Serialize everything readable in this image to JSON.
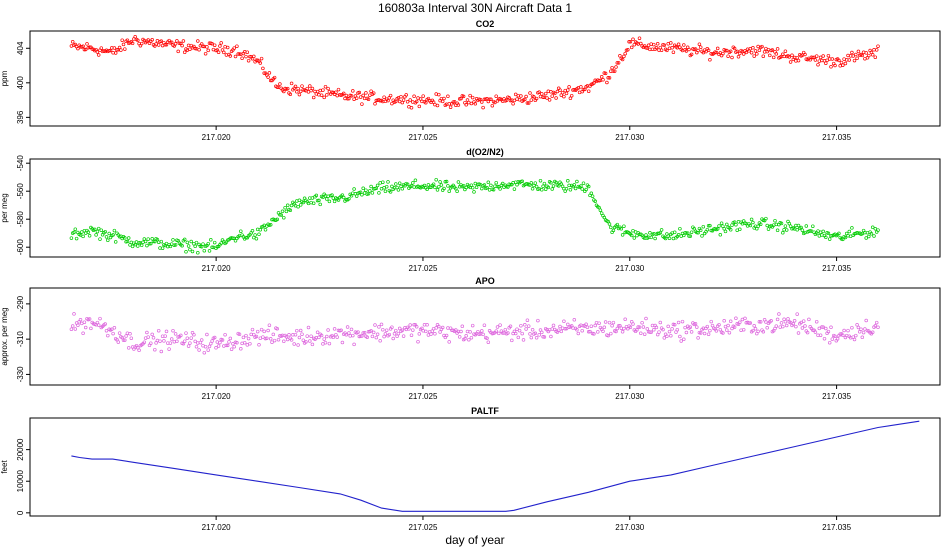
{
  "title": "160803a   Interval 30N Aircraft Data 1",
  "xlabel": "day of year",
  "xlim": [
    217.0155,
    217.0375
  ],
  "x_ticks": [
    217.02,
    217.025,
    217.03,
    217.035
  ],
  "x_tick_labels": [
    "217.020",
    "217.025",
    "217.030",
    "217.035"
  ],
  "chart_data": [
    {
      "type": "scatter",
      "title": "CO2",
      "ylabel": "ppm",
      "color": "#ff0000",
      "ylim": [
        395,
        406
      ],
      "y_ticks": [
        396,
        400,
        404
      ],
      "y_tick_labels": [
        "396",
        "400",
        "404"
      ],
      "x": [
        217.0165,
        217.017,
        217.0175,
        217.018,
        217.019,
        217.0205,
        217.021,
        217.0215,
        217.022,
        217.023,
        217.024,
        217.025,
        217.026,
        217.027,
        217.028,
        217.029,
        217.0295,
        217.0298,
        217.03,
        217.031,
        217.032,
        217.033,
        217.034,
        217.035,
        217.036
      ],
      "y": [
        404.2,
        404.0,
        403.5,
        405.0,
        404.3,
        403.8,
        402.5,
        399.5,
        399.2,
        398.5,
        398.2,
        398.0,
        397.8,
        398.0,
        398.5,
        399.5,
        401.0,
        403.0,
        404.5,
        404.0,
        403.5,
        403.8,
        403.0,
        402.5,
        403.5
      ],
      "noise": 0.6
    },
    {
      "type": "scatter",
      "title": "d(O2/N2)",
      "ylabel": "per meg",
      "color": "#00cc00",
      "ylim": [
        -607,
        -537
      ],
      "y_ticks": [
        -600,
        -580,
        -560,
        -540
      ],
      "y_tick_labels": [
        "-600",
        "-580",
        "-560",
        "-540"
      ],
      "x": [
        217.0165,
        217.017,
        217.0175,
        217.018,
        217.019,
        217.02,
        217.0205,
        217.021,
        217.0215,
        217.022,
        217.023,
        217.024,
        217.025,
        217.026,
        217.027,
        217.028,
        217.029,
        217.0295,
        217.03,
        217.031,
        217.032,
        217.033,
        217.034,
        217.035,
        217.036
      ],
      "y": [
        -591,
        -588,
        -592,
        -596,
        -598,
        -600,
        -592,
        -591,
        -578,
        -568,
        -565,
        -558,
        -556,
        -558,
        -555,
        -556,
        -557,
        -585,
        -590,
        -592,
        -587,
        -583,
        -586,
        -593,
        -588
      ],
      "noise": 3.5
    },
    {
      "type": "scatter",
      "title": "APO",
      "ylabel": "approx. per meg",
      "color": "#dd66dd",
      "ylim": [
        -336,
        -281
      ],
      "y_ticks": [
        -330,
        -310,
        -290
      ],
      "y_tick_labels": [
        "-330",
        "-310",
        "-290"
      ],
      "x": [
        217.0165,
        217.017,
        217.0175,
        217.018,
        217.019,
        217.02,
        217.021,
        217.022,
        217.023,
        217.024,
        217.025,
        217.026,
        217.027,
        217.028,
        217.029,
        217.03,
        217.031,
        217.032,
        217.033,
        217.034,
        217.035,
        217.036
      ],
      "y": [
        -302,
        -300,
        -305,
        -312,
        -310,
        -313,
        -308,
        -309,
        -307,
        -306,
        -305,
        -307,
        -306,
        -305,
        -304,
        -303,
        -305,
        -304,
        -302,
        -301,
        -308,
        -302
      ],
      "noise": 4.5
    },
    {
      "type": "line",
      "title": "PALTF",
      "ylabel": "feet",
      "color": "#2222cc",
      "ylim": [
        -1000,
        30000
      ],
      "y_ticks": [
        0,
        10000,
        20000
      ],
      "y_tick_labels": [
        "0",
        "10000",
        "20000"
      ],
      "x": [
        217.0165,
        217.0167,
        217.017,
        217.0175,
        217.018,
        217.019,
        217.02,
        217.021,
        217.022,
        217.023,
        217.0235,
        217.024,
        217.0245,
        217.025,
        217.026,
        217.027,
        217.0272,
        217.028,
        217.029,
        217.03,
        217.0305,
        217.031,
        217.032,
        217.033,
        217.034,
        217.035,
        217.036,
        217.037
      ],
      "y": [
        18000,
        17500,
        17000,
        17000,
        16000,
        14000,
        12000,
        10000,
        8000,
        6000,
        4000,
        1500,
        500,
        500,
        500,
        500,
        800,
        3500,
        6500,
        10000,
        11000,
        12000,
        15000,
        18000,
        21000,
        24000,
        27000,
        29000
      ]
    }
  ]
}
